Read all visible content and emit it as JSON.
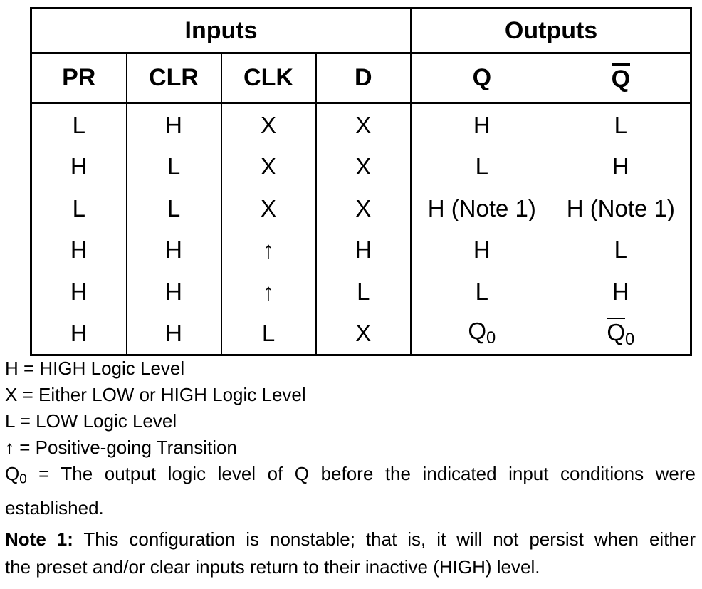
{
  "table": {
    "group_headers": [
      "Inputs",
      "Outputs"
    ],
    "column_headers": [
      "PR",
      "CLR",
      "CLK",
      "D",
      "Q",
      "Q"
    ],
    "rows": [
      [
        "L",
        "H",
        "X",
        "X",
        "H",
        "L"
      ],
      [
        "H",
        "L",
        "X",
        "X",
        "L",
        "H"
      ],
      [
        "L",
        "L",
        "X",
        "X",
        "H (Note 1)",
        "H (Note 1)"
      ],
      [
        "H",
        "H",
        "↑",
        "H",
        "H",
        "L"
      ],
      [
        "H",
        "H",
        "↑",
        "L",
        "L",
        "H"
      ],
      [
        "H",
        "H",
        "L",
        "X",
        "Q",
        "Q"
      ]
    ],
    "last_row_subscript": "0"
  },
  "legend": {
    "h_line": "H = HIGH Logic Level",
    "x_line": "X = Either LOW or HIGH Logic Level",
    "l_line": "L = LOW Logic Level",
    "arrow_symbol": "↑",
    "arrow_text": " = Positive-going Transition",
    "q0_symbol": "Q",
    "q0_subscript": "0",
    "q0_text_line1": " = The output logic level of Q before the indicated input conditions were",
    "q0_text_line2": "established."
  },
  "note": {
    "label": "Note 1:",
    "text_line1": " This configuration is nonstable; that is, it will not persist when either",
    "text_line2": "the preset and/or clear inputs return to their inactive (HIGH) level."
  }
}
